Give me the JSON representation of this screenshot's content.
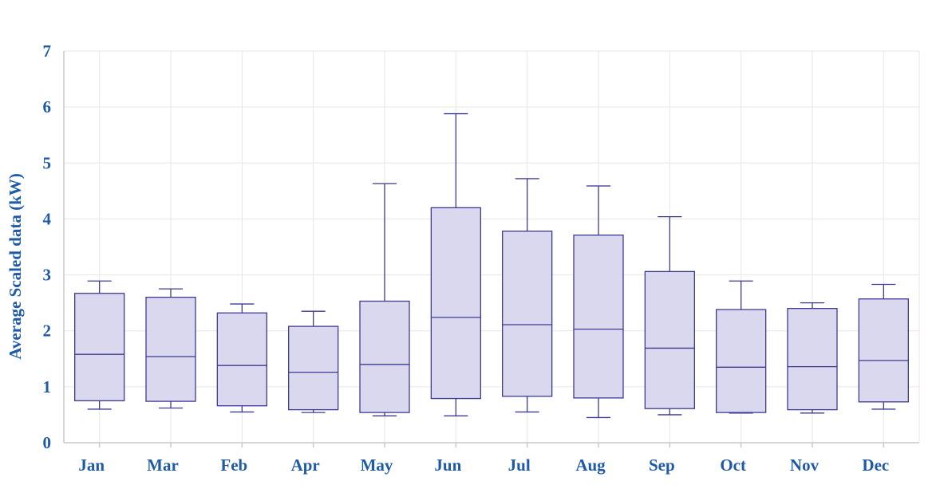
{
  "chart_data": {
    "type": "box",
    "title": "",
    "xlabel": "",
    "ylabel": "Average Scaled data (kW)",
    "ylim": [
      0,
      7
    ],
    "yticks": [
      0,
      1,
      2,
      3,
      4,
      5,
      6,
      7
    ],
    "grid": true,
    "legend": "none",
    "categories": [
      "Jan",
      "Mar",
      "Feb",
      "Apr",
      "May",
      "Jun",
      "Jul",
      "Aug",
      "Sep",
      "Oct",
      "Nov",
      "Dec"
    ],
    "boxes": [
      {
        "min": 0.6,
        "q1": 0.75,
        "median": 1.58,
        "q3": 2.67,
        "max": 2.89
      },
      {
        "min": 0.62,
        "q1": 0.74,
        "median": 1.54,
        "q3": 2.6,
        "max": 2.75
      },
      {
        "min": 0.55,
        "q1": 0.66,
        "median": 1.38,
        "q3": 2.32,
        "max": 2.48
      },
      {
        "min": 0.54,
        "q1": 0.59,
        "median": 1.26,
        "q3": 2.08,
        "max": 2.35
      },
      {
        "min": 0.48,
        "q1": 0.54,
        "median": 1.4,
        "q3": 2.53,
        "max": 4.63
      },
      {
        "min": 0.48,
        "q1": 0.79,
        "median": 2.24,
        "q3": 4.2,
        "max": 5.88
      },
      {
        "min": 0.55,
        "q1": 0.83,
        "median": 2.11,
        "q3": 3.78,
        "max": 4.72
      },
      {
        "min": 0.45,
        "q1": 0.8,
        "median": 2.03,
        "q3": 3.71,
        "max": 4.59
      },
      {
        "min": 0.5,
        "q1": 0.61,
        "median": 1.69,
        "q3": 3.06,
        "max": 4.04
      },
      {
        "min": 0.53,
        "q1": 0.54,
        "median": 1.35,
        "q3": 2.38,
        "max": 2.89
      },
      {
        "min": 0.53,
        "q1": 0.59,
        "median": 1.36,
        "q3": 2.4,
        "max": 2.5
      },
      {
        "min": 0.6,
        "q1": 0.73,
        "median": 1.47,
        "q3": 2.57,
        "max": 2.83
      }
    ]
  },
  "colors": {
    "axis_text": "#1f5aa6",
    "box_fill": "#d9d8ee",
    "box_stroke": "#3c3a93",
    "grid": "#e6e6e6",
    "axis_line": "#c9c9c9"
  }
}
